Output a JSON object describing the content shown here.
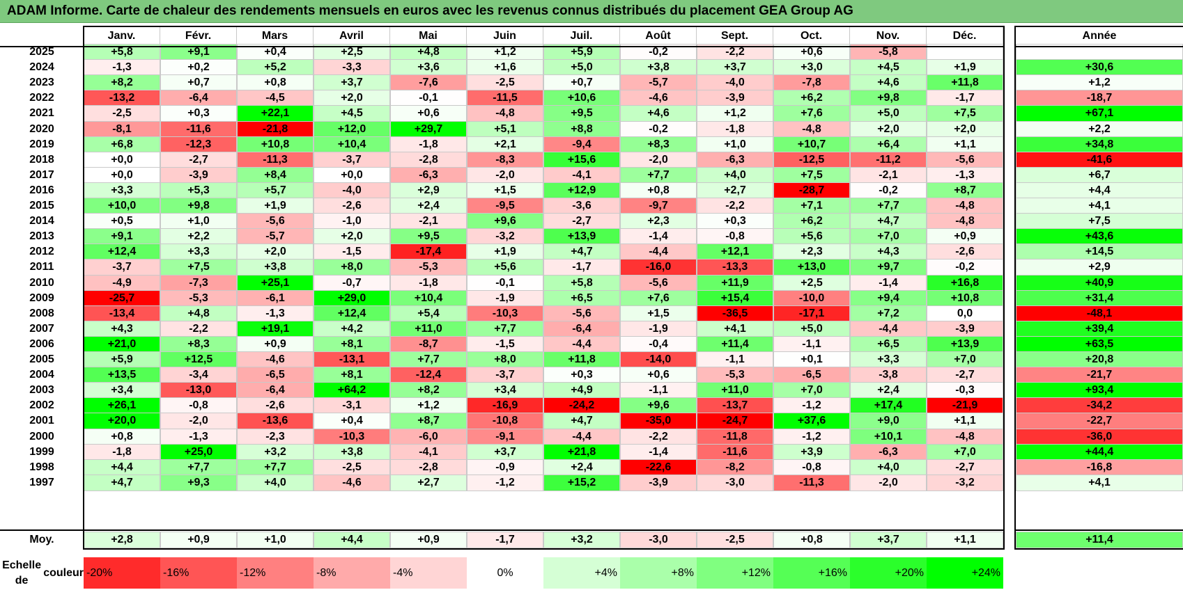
{
  "title": "ADAM Informe. Carte de chaleur des rendements mensuels en euros avec les revenus connus distribués du placement GEA Group AG",
  "chart_data": {
    "type": "heatmap",
    "columns": [
      "Janv.",
      "Févr.",
      "Mars",
      "Avril",
      "Mai",
      "Juin",
      "Juil.",
      "Août",
      "Sept.",
      "Oct.",
      "Nov.",
      "Déc."
    ],
    "year_column": "Année",
    "rows": [
      {
        "year": "2025",
        "values": [
          "+5,8",
          "+9,1",
          "+0,4",
          "+2,5",
          "+4,8",
          "+1,2",
          "+5,9",
          "-0,2",
          "-2,2",
          "+0,6",
          "-5,8",
          ""
        ],
        "annual": ""
      },
      {
        "year": "2024",
        "values": [
          "-1,3",
          "+0,2",
          "+5,2",
          "-3,3",
          "+3,6",
          "+1,6",
          "+5,0",
          "+3,8",
          "+3,7",
          "+3,0",
          "+4,5",
          "+1,9"
        ],
        "annual": "+30,6"
      },
      {
        "year": "2023",
        "values": [
          "+8,2",
          "+0,7",
          "+0,8",
          "+3,7",
          "-7,6",
          "-2,5",
          "+0,7",
          "-5,7",
          "-4,0",
          "-7,8",
          "+4,6",
          "+11,8"
        ],
        "annual": "+1,2"
      },
      {
        "year": "2022",
        "values": [
          "-13,2",
          "-6,4",
          "-4,5",
          "+2,0",
          "-0,1",
          "-11,5",
          "+10,6",
          "-4,6",
          "-3,9",
          "+6,2",
          "+9,8",
          "-1,7"
        ],
        "annual": "-18,7"
      },
      {
        "year": "2021",
        "values": [
          "-2,5",
          "+0,3",
          "+22,1",
          "+4,5",
          "+0,6",
          "-4,8",
          "+9,5",
          "+4,6",
          "+1,2",
          "+7,6",
          "+5,0",
          "+7,5"
        ],
        "annual": "+67,1"
      },
      {
        "year": "2020",
        "values": [
          "-8,1",
          "-11,6",
          "-21,8",
          "+12,0",
          "+29,7",
          "+5,1",
          "+8,8",
          "-0,2",
          "-1,8",
          "-4,8",
          "+2,0",
          "+2,0"
        ],
        "annual": "+2,2"
      },
      {
        "year": "2019",
        "values": [
          "+6,8",
          "-12,3",
          "+10,8",
          "+10,4",
          "-1,8",
          "+2,1",
          "-9,4",
          "+8,3",
          "+1,0",
          "+10,7",
          "+6,4",
          "+1,1"
        ],
        "annual": "+34,8"
      },
      {
        "year": "2018",
        "values": [
          "+0,0",
          "-2,7",
          "-11,3",
          "-3,7",
          "-2,8",
          "-8,3",
          "+15,6",
          "-2,0",
          "-6,3",
          "-12,5",
          "-11,2",
          "-5,6"
        ],
        "annual": "-41,6"
      },
      {
        "year": "2017",
        "values": [
          "+0,0",
          "-3,9",
          "+8,4",
          "+0,0",
          "-6,3",
          "-2,0",
          "-4,1",
          "+7,7",
          "+4,0",
          "+7,5",
          "-2,1",
          "-1,3"
        ],
        "annual": "+6,7"
      },
      {
        "year": "2016",
        "values": [
          "+3,3",
          "+5,3",
          "+5,7",
          "-4,0",
          "+2,9",
          "+1,5",
          "+12,9",
          "+0,8",
          "+2,7",
          "-28,7",
          "-0,2",
          "+8,7"
        ],
        "annual": "+4,4"
      },
      {
        "year": "2015",
        "values": [
          "+10,0",
          "+9,8",
          "+1,9",
          "-2,6",
          "+2,4",
          "-9,5",
          "-3,6",
          "-9,7",
          "-2,2",
          "+7,1",
          "+7,7",
          "-4,8"
        ],
        "annual": "+4,1"
      },
      {
        "year": "2014",
        "values": [
          "+0,5",
          "+1,0",
          "-5,6",
          "-1,0",
          "-2,1",
          "+9,6",
          "-2,7",
          "+2,3",
          "+0,3",
          "+6,2",
          "+4,7",
          "-4,8"
        ],
        "annual": "+7,5"
      },
      {
        "year": "2013",
        "values": [
          "+9,1",
          "+2,2",
          "-5,7",
          "+2,0",
          "+9,5",
          "-3,2",
          "+13,9",
          "-1,4",
          "-0,8",
          "+5,6",
          "+7,0",
          "+0,9"
        ],
        "annual": "+43,6"
      },
      {
        "year": "2012",
        "values": [
          "+12,4",
          "+3,3",
          "+2,0",
          "-1,5",
          "-17,4",
          "+1,9",
          "+4,7",
          "-4,4",
          "+12,1",
          "+2,3",
          "+4,3",
          "-2,6"
        ],
        "annual": "+14,5"
      },
      {
        "year": "2011",
        "values": [
          "-3,7",
          "+7,5",
          "+3,8",
          "+8,0",
          "-5,3",
          "+5,6",
          "-1,7",
          "-16,0",
          "-13,3",
          "+13,0",
          "+9,7",
          "-0,2"
        ],
        "annual": "+2,9"
      },
      {
        "year": "2010",
        "values": [
          "-4,9",
          "-7,3",
          "+25,1",
          "-0,7",
          "-1,8",
          "-0,1",
          "+5,8",
          "-5,6",
          "+11,9",
          "+2,5",
          "-1,4",
          "+16,8"
        ],
        "annual": "+40,9"
      },
      {
        "year": "2009",
        "values": [
          "-25,7",
          "-5,3",
          "-6,1",
          "+29,0",
          "+10,4",
          "-1,9",
          "+6,5",
          "+7,6",
          "+15,4",
          "-10,0",
          "+9,4",
          "+10,8"
        ],
        "annual": "+31,4"
      },
      {
        "year": "2008",
        "values": [
          "-13,4",
          "+4,8",
          "-1,3",
          "+12,4",
          "+5,4",
          "-10,3",
          "-5,6",
          "+1,5",
          "-36,5",
          "-17,1",
          "+7,2",
          "0,0"
        ],
        "annual": "-48,1"
      },
      {
        "year": "2007",
        "values": [
          "+4,3",
          "-2,2",
          "+19,1",
          "+4,2",
          "+11,0",
          "+7,7",
          "-6,4",
          "-1,9",
          "+4,1",
          "+5,0",
          "-4,4",
          "-3,9"
        ],
        "annual": "+39,4"
      },
      {
        "year": "2006",
        "values": [
          "+21,0",
          "+8,3",
          "+0,9",
          "+8,1",
          "-8,7",
          "-1,5",
          "-4,4",
          "-0,4",
          "+11,4",
          "-1,1",
          "+6,5",
          "+13,9"
        ],
        "annual": "+63,5"
      },
      {
        "year": "2005",
        "values": [
          "+5,9",
          "+12,5",
          "-4,6",
          "-13,1",
          "+7,7",
          "+8,0",
          "+11,8",
          "-14,0",
          "-1,1",
          "+0,1",
          "+3,3",
          "+7,0"
        ],
        "annual": "+20,8"
      },
      {
        "year": "2004",
        "values": [
          "+13,5",
          "-3,4",
          "-6,5",
          "+8,1",
          "-12,4",
          "-3,7",
          "+0,3",
          "+0,6",
          "-5,3",
          "-6,5",
          "-3,8",
          "-2,7"
        ],
        "annual": "-21,7"
      },
      {
        "year": "2003",
        "values": [
          "+3,4",
          "-13,0",
          "-6,4",
          "+64,2",
          "+8,2",
          "+3,4",
          "+4,9",
          "-1,1",
          "+11,0",
          "+7,0",
          "+2,4",
          "-0,3"
        ],
        "annual": "+93,4"
      },
      {
        "year": "2002",
        "values": [
          "+26,1",
          "-0,8",
          "-2,6",
          "-3,1",
          "+1,2",
          "-16,9",
          "-24,2",
          "+9,6",
          "-13,7",
          "-1,2",
          "+17,4",
          "-21,9"
        ],
        "annual": "-34,2"
      },
      {
        "year": "2001",
        "values": [
          "+20,0",
          "-2,0",
          "-13,6",
          "+0,4",
          "+8,7",
          "-10,8",
          "+4,7",
          "-35,0",
          "-24,7",
          "+37,6",
          "+9,0",
          "+1,1"
        ],
        "annual": "-22,7"
      },
      {
        "year": "2000",
        "values": [
          "+0,8",
          "-1,3",
          "-2,3",
          "-10,3",
          "-6,0",
          "-9,1",
          "-4,4",
          "-2,2",
          "-11,8",
          "-1,2",
          "+10,1",
          "-4,8"
        ],
        "annual": "-36,0"
      },
      {
        "year": "1999",
        "values": [
          "-1,8",
          "+25,0",
          "+3,2",
          "+3,8",
          "-4,1",
          "+3,7",
          "+21,8",
          "-1,4",
          "-11,6",
          "+3,9",
          "-6,3",
          "+7,0"
        ],
        "annual": "+44,4"
      },
      {
        "year": "1998",
        "values": [
          "+4,4",
          "+7,7",
          "+7,7",
          "-2,5",
          "-2,8",
          "-0,9",
          "+2,4",
          "-22,6",
          "-8,2",
          "-0,8",
          "+4,0",
          "-2,7"
        ],
        "annual": "-16,8"
      },
      {
        "year": "1997",
        "values": [
          "+4,7",
          "+9,3",
          "+4,0",
          "-4,6",
          "+2,7",
          "-1,2",
          "+15,2",
          "-3,9",
          "-3,0",
          "-11,3",
          "-2,0",
          "-3,2"
        ],
        "annual": "+4,1"
      }
    ],
    "average": {
      "label": "Moy.",
      "values": [
        "+2,8",
        "+0,9",
        "+1,0",
        "+4,4",
        "+0,9",
        "-1,7",
        "+3,2",
        "-3,0",
        "-2,5",
        "+0,8",
        "+3,7",
        "+1,1"
      ],
      "annual": "+11,4"
    },
    "color_scale": {
      "label_line1": "Echelle de",
      "label_line2": "couleur",
      "steps": [
        {
          "label": "-20%",
          "value": -20
        },
        {
          "label": "-16%",
          "value": -16
        },
        {
          "label": "-12%",
          "value": -12
        },
        {
          "label": "-8%",
          "value": -8
        },
        {
          "label": "-4%",
          "value": -4
        },
        {
          "label": "0%",
          "value": 0
        },
        {
          "label": "+4%",
          "value": 4
        },
        {
          "label": "+8%",
          "value": 8
        },
        {
          "label": "+12%",
          "value": 12
        },
        {
          "label": "+16%",
          "value": 16
        },
        {
          "label": "+20%",
          "value": 20
        },
        {
          "label": "+24%",
          "value": 24
        }
      ],
      "negative_color": "#ff0000",
      "positive_color": "#00ff00",
      "neutral_color": "#ffffff"
    }
  }
}
